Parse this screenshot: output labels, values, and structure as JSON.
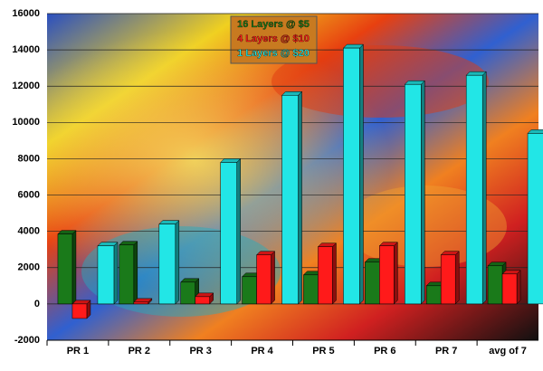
{
  "chart_data": {
    "type": "bar",
    "categories": [
      "PR 1",
      "PR 2",
      "PR 3",
      "PR 4",
      "PR 5",
      "PR 6",
      "PR 7",
      "avg of 7"
    ],
    "series": [
      {
        "name": "16 Layers @ $5",
        "color": "#1a7a1a",
        "values": [
          3850,
          3250,
          1200,
          1500,
          1600,
          2300,
          1000,
          2100
        ]
      },
      {
        "name": "4 Layers @ $10",
        "color": "#ff1a1a",
        "values": [
          -800,
          100,
          400,
          2700,
          3150,
          3200,
          2700,
          1650
        ]
      },
      {
        "name": "1 Layers @ $20",
        "color": "#22e6e6",
        "values": [
          3200,
          4400,
          7800,
          11500,
          14100,
          12100,
          12600,
          9400
        ]
      }
    ],
    "ylim": [
      -2000,
      16000
    ],
    "yticks": [
      -2000,
      0,
      2000,
      4000,
      6000,
      8000,
      10000,
      12000,
      14000,
      16000
    ],
    "grid": true
  }
}
